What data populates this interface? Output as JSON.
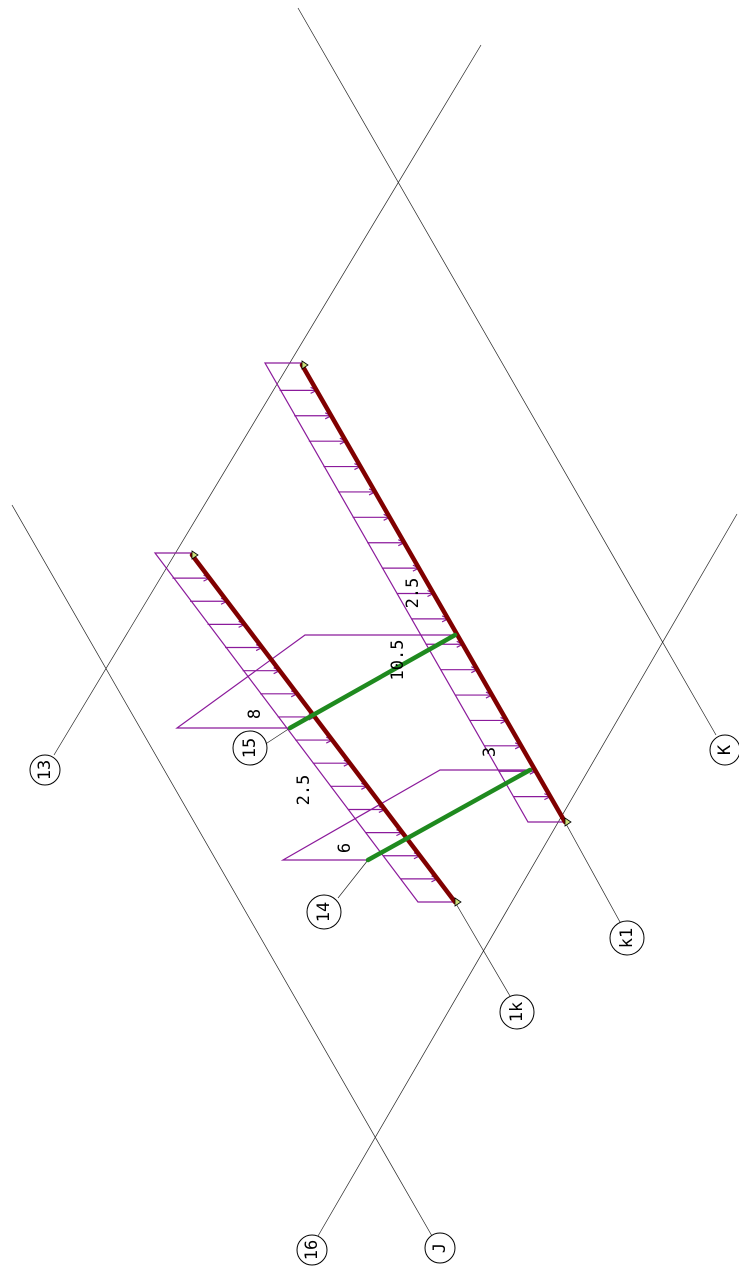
{
  "grid_labels": [
    "13",
    "16",
    "J",
    "K",
    "1k",
    "k1",
    "14",
    "15"
  ],
  "load_labels": [
    "8",
    "2.5",
    "6",
    "2.5",
    "10.5",
    "3"
  ]
}
